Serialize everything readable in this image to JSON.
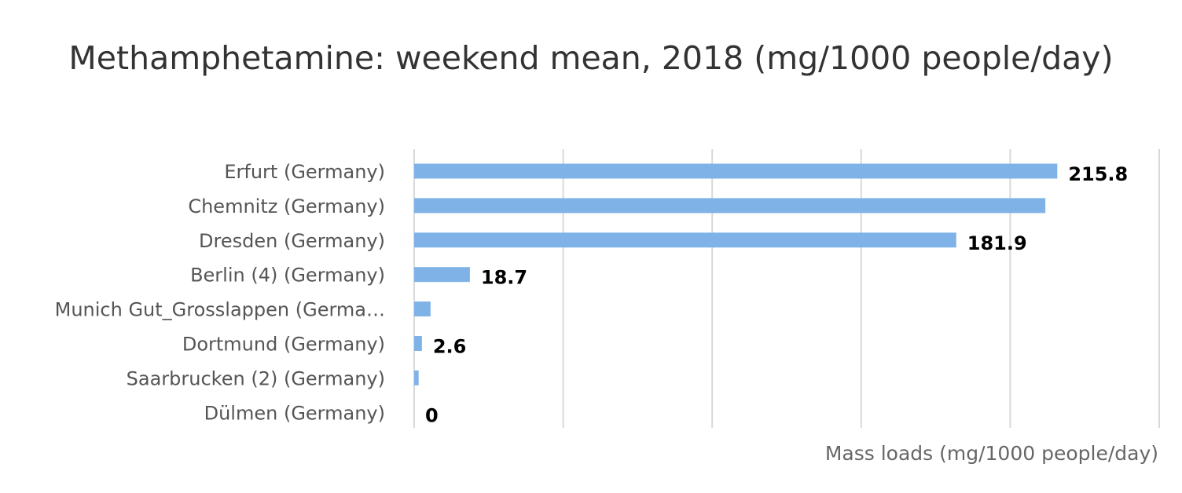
{
  "chart_data": {
    "type": "bar",
    "orientation": "horizontal",
    "title": "Methamphetamine: weekend mean, 2018 (mg/1000 people/day)",
    "xlabel": "Mass loads (mg/1000 people/day)",
    "ylabel": "",
    "categories": [
      "Erfurt (Germany)",
      "Chemnitz (Germany)",
      "Dresden (Germany)",
      "Berlin (4) (Germany)",
      "Munich Gut_Grosslappen (Germa…",
      "Dortmund (Germany)",
      "Saarbrucken (2) (Germany)",
      "Dülmen (Germany)"
    ],
    "values": [
      215.8,
      211.8,
      181.9,
      18.7,
      5.5,
      2.6,
      1.5,
      0
    ],
    "data_labels": [
      "215.8",
      "",
      "181.9",
      "18.7",
      "",
      "2.6",
      "",
      "0"
    ],
    "xlim": [
      0,
      250
    ],
    "gridlines": [
      0,
      50,
      100,
      150,
      200,
      250
    ],
    "grid": true,
    "tick_labels_visible": false,
    "legend": "none",
    "bar_color": "#7fb3e8",
    "grid_color": "#d9d9d9"
  }
}
